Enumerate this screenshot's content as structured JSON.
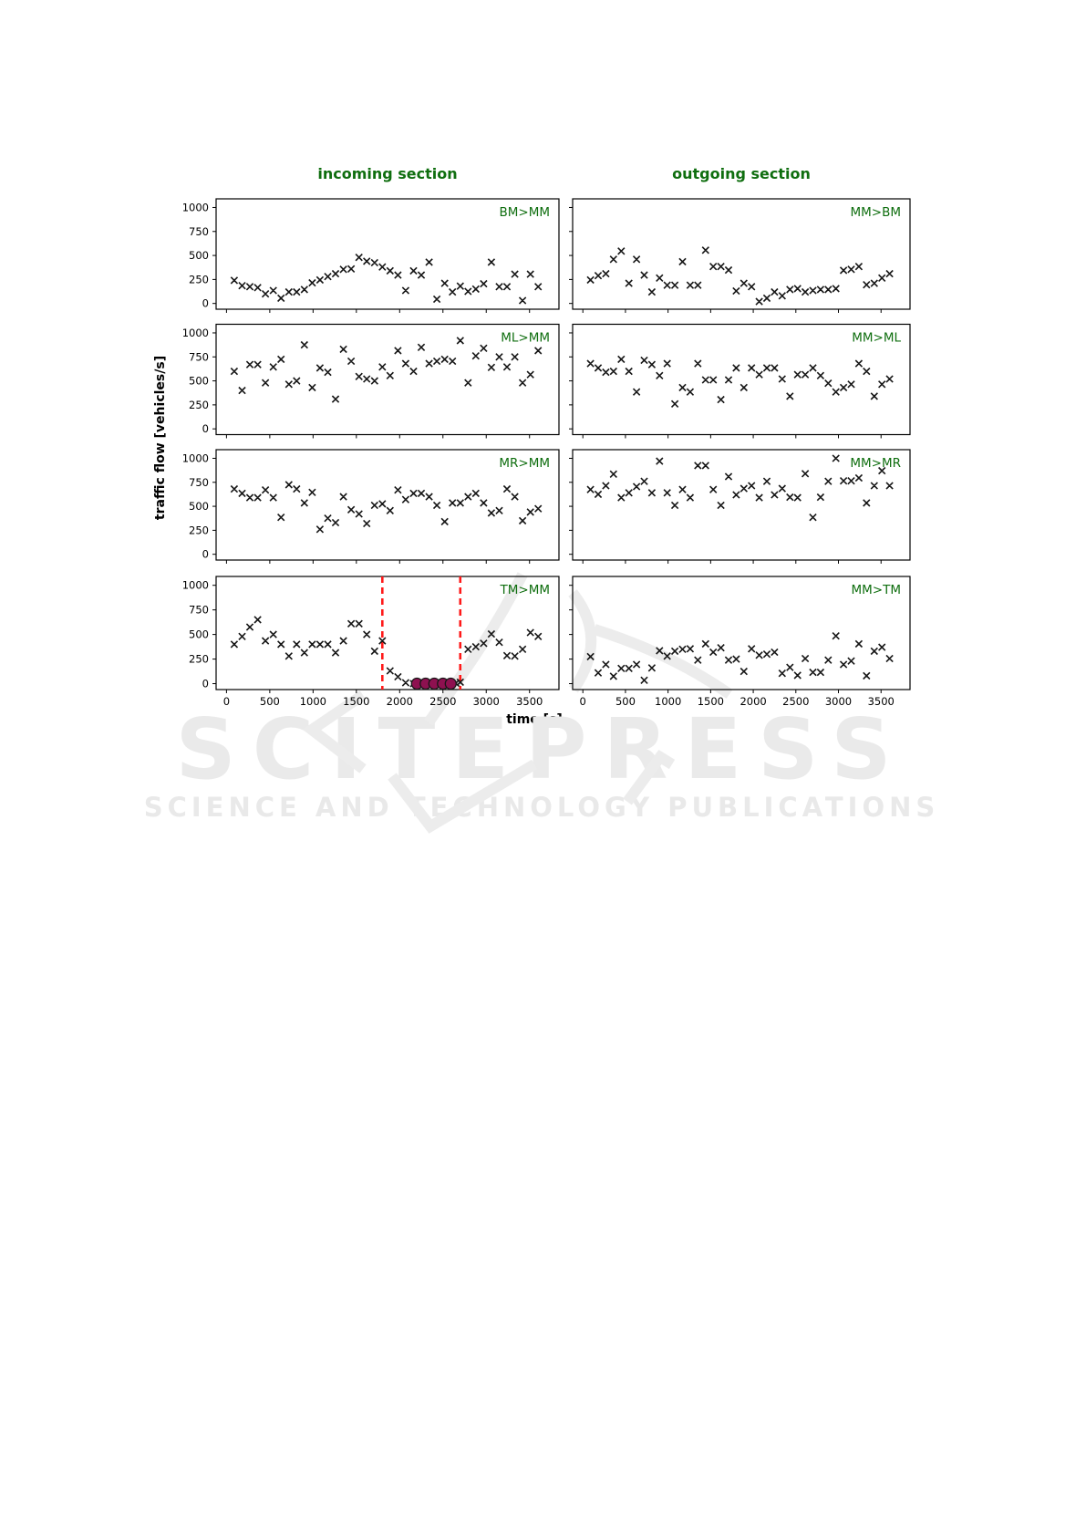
{
  "watermark": {
    "line1": "SCITEPRESS",
    "line2": "SCIENCE AND TECHNOLOGY PUBLICATIONS",
    "color": "#eaeaea"
  },
  "figure": {
    "column_titles": {
      "incoming": "incoming section",
      "outgoing": "outgoing section"
    },
    "xlabel": "time [s]",
    "ylabel": "traffic flow [vehicles/s]",
    "colors": {
      "title_green": "#0f6e0f",
      "marker": "#161616",
      "axis": "#000000",
      "event_line_red": "#ff1a1a",
      "event_marker_fill": "#8e1150",
      "swoosh_gray": "#ececec"
    }
  },
  "chart_data": {
    "type": "scatter",
    "marker": "x",
    "grid": false,
    "xlabel": "time [s]",
    "ylabel": "traffic flow [vehicles/s]",
    "xticks": [
      0,
      500,
      1000,
      1500,
      2000,
      2500,
      3000,
      3500
    ],
    "yticks": [
      0,
      250,
      500,
      750,
      1000
    ],
    "xlim": [
      -120,
      3840
    ],
    "ylim": [
      -60,
      1090
    ],
    "x_default": [
      90,
      180,
      270,
      360,
      450,
      540,
      630,
      720,
      810,
      900,
      990,
      1080,
      1170,
      1260,
      1350,
      1440,
      1530,
      1620,
      1710,
      1800,
      1890,
      1980,
      2070,
      2160,
      2250,
      2340,
      2430,
      2520,
      2610,
      2700,
      2790,
      2880,
      2970,
      3060,
      3150,
      3240,
      3330,
      3420,
      3510,
      3600
    ],
    "subplots": [
      {
        "label": "BM>MM",
        "column": "incoming",
        "row": 0,
        "y": [
          240,
          185,
          175,
          165,
          100,
          135,
          55,
          120,
          120,
          145,
          215,
          245,
          280,
          310,
          355,
          360,
          480,
          440,
          425,
          380,
          340,
          295,
          135,
          340,
          295,
          430,
          45,
          210,
          120,
          180,
          125,
          150,
          205,
          430,
          175,
          175,
          305,
          30,
          305,
          175
        ]
      },
      {
        "label": "MM>BM",
        "column": "outgoing",
        "row": 0,
        "y": [
          245,
          290,
          310,
          460,
          545,
          210,
          460,
          295,
          120,
          265,
          190,
          190,
          435,
          190,
          190,
          555,
          385,
          385,
          348,
          130,
          210,
          175,
          20,
          55,
          120,
          80,
          145,
          155,
          120,
          135,
          145,
          145,
          155,
          345,
          355,
          385,
          195,
          210,
          265,
          310
        ]
      },
      {
        "label": "ML>MM",
        "column": "incoming",
        "row": 1,
        "y": [
          600,
          400,
          670,
          670,
          480,
          645,
          725,
          465,
          500,
          875,
          430,
          635,
          590,
          310,
          830,
          705,
          545,
          520,
          500,
          645,
          555,
          815,
          680,
          600,
          850,
          680,
          705,
          725,
          705,
          920,
          480,
          760,
          840,
          640,
          750,
          645,
          750,
          480,
          565,
          815
        ]
      },
      {
        "label": "MM>ML",
        "column": "outgoing",
        "row": 1,
        "y": [
          680,
          635,
          590,
          600,
          725,
          600,
          385,
          715,
          670,
          555,
          680,
          260,
          430,
          385,
          680,
          510,
          510,
          305,
          510,
          635,
          430,
          635,
          565,
          635,
          635,
          520,
          340,
          565,
          565,
          635,
          555,
          475,
          385,
          430,
          465,
          680,
          600,
          340,
          465,
          520
        ]
      },
      {
        "label": "MR>MM",
        "column": "incoming",
        "row": 2,
        "y": [
          680,
          635,
          590,
          590,
          670,
          590,
          385,
          725,
          680,
          535,
          645,
          260,
          375,
          330,
          600,
          465,
          420,
          320,
          510,
          525,
          455,
          670,
          570,
          635,
          635,
          600,
          510,
          340,
          535,
          535,
          600,
          635,
          535,
          430,
          455,
          680,
          600,
          350,
          440,
          475
        ]
      },
      {
        "label": "MM>MR",
        "column": "outgoing",
        "row": 2,
        "y": [
          675,
          625,
          715,
          835,
          590,
          640,
          705,
          760,
          640,
          970,
          640,
          510,
          675,
          590,
          925,
          925,
          675,
          510,
          810,
          620,
          685,
          715,
          590,
          760,
          620,
          685,
          595,
          590,
          840,
          385,
          595,
          760,
          1000,
          765,
          765,
          795,
          535,
          715,
          870,
          715
        ]
      },
      {
        "label": "TM>MM",
        "column": "incoming",
        "row": 3,
        "x": [
          90,
          180,
          270,
          360,
          450,
          540,
          630,
          720,
          810,
          900,
          990,
          1080,
          1170,
          1260,
          1350,
          1440,
          1530,
          1620,
          1710,
          1800,
          1890,
          1980,
          2070,
          2160,
          2650,
          2700,
          2790,
          2880,
          2970,
          3060,
          3150,
          3240,
          3330,
          3420,
          3510,
          3600
        ],
        "y": [
          400,
          480,
          575,
          650,
          435,
          500,
          400,
          280,
          400,
          315,
          400,
          400,
          400,
          315,
          435,
          610,
          610,
          500,
          330,
          435,
          130,
          70,
          10,
          0,
          5,
          15,
          350,
          375,
          410,
          505,
          420,
          285,
          280,
          350,
          520,
          480
        ],
        "event_lines": [
          1800,
          2700
        ],
        "event_points": {
          "x": [
            2200,
            2300,
            2400,
            2500,
            2590
          ],
          "y": [
            0,
            0,
            0,
            0,
            0
          ]
        }
      },
      {
        "label": "MM>TM",
        "column": "outgoing",
        "row": 3,
        "y": [
          275,
          110,
          195,
          75,
          155,
          155,
          195,
          35,
          160,
          335,
          280,
          330,
          350,
          355,
          240,
          405,
          320,
          365,
          240,
          250,
          125,
          355,
          290,
          300,
          320,
          105,
          165,
          85,
          255,
          115,
          115,
          240,
          485,
          195,
          230,
          405,
          80,
          330,
          370,
          255
        ]
      }
    ]
  }
}
